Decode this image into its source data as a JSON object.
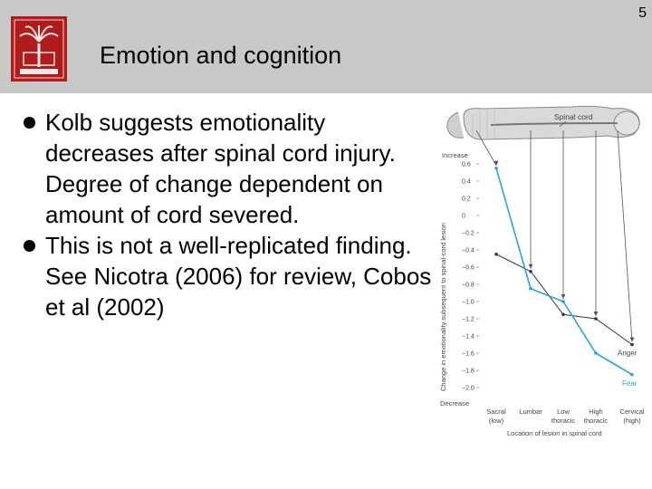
{
  "slide_number": "5",
  "title": "Emotion and cognition",
  "bullets": [
    "Kolb suggests emotionality decreases after spinal cord injury. Degree of change dependent on amount of cord severed.",
    "This is not a well-replicated finding. See Nicotra (2006) for review, Cobos et al (2002)"
  ],
  "logo_icon": "palmetto-seal-icon",
  "figure": {
    "spinal_cord_label": "Spinal cord",
    "increase_label": "Increase",
    "decrease_label": "Decrease",
    "y_ticks": [
      "0.6",
      "0.4",
      "0.2",
      "0",
      "−0.2",
      "−0.4",
      "−0.6",
      "−0.8",
      "−1.0",
      "−1.2",
      "−1.4",
      "−1.6",
      "−1.8",
      "−2.0"
    ],
    "x_categories": [
      {
        "line1": "Sacral",
        "line2": "(low)"
      },
      {
        "line1": "Lumbar",
        "line2": ""
      },
      {
        "line1": "Low",
        "line2": "thoracic"
      },
      {
        "line1": "High",
        "line2": "thoracic"
      },
      {
        "line1": "Cervical",
        "line2": "(high)"
      }
    ]
  },
  "chart_data": {
    "type": "line",
    "ylabel": "Change in emotionality subsequent to spinal-cord lesion",
    "xlabel": "Location of lesion in spinal cord",
    "categories": [
      "Sacral (low)",
      "Lumbar",
      "Low thoracic",
      "High thoracic",
      "Cervical (high)"
    ],
    "ylim": [
      -2.0,
      0.6
    ],
    "series": [
      {
        "name": "Anger",
        "color": "#333333",
        "values": [
          -0.45,
          -0.65,
          -1.15,
          -1.2,
          -1.5
        ]
      },
      {
        "name": "Fear",
        "color": "#29a3dc",
        "values": [
          0.55,
          -0.85,
          -1.0,
          -1.6,
          -1.85
        ]
      }
    ]
  }
}
